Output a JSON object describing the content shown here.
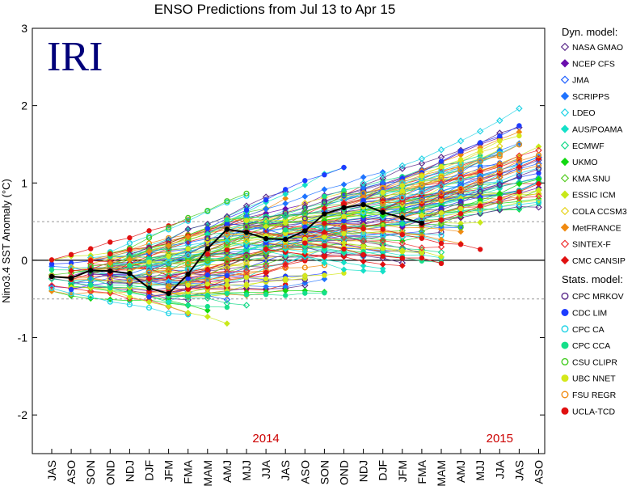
{
  "chart_data": {
    "type": "line",
    "title": "ENSO Predictions from Jul 13 to Apr 15",
    "watermark": "IRI",
    "ylabel": "Nino3.4 SST Anomaly (°C)",
    "xlabel": "",
    "ylim": [
      -2.5,
      3
    ],
    "yticks": [
      -2,
      -1,
      0,
      1,
      2,
      3
    ],
    "reference_lines": [
      0.5,
      -0.5
    ],
    "grid": false,
    "legend_position": "right",
    "categories": [
      "JAS",
      "ASO",
      "SON",
      "OND",
      "NDJ",
      "DJF",
      "JFM",
      "FMA",
      "MAM",
      "AMJ",
      "MJJ",
      "JJA",
      "JAS",
      "ASO",
      "SON",
      "OND",
      "NDJ",
      "DJF",
      "JFM",
      "FMA",
      "MAM",
      "AMJ",
      "MJJ",
      "JJA",
      "JAS",
      "ASO"
    ],
    "year_labels": [
      {
        "label": "2014",
        "category_index": 11
      },
      {
        "label": "2015",
        "category_index": 23
      }
    ],
    "observed": {
      "name": "observed",
      "color": "#000000",
      "values": [
        -0.21,
        -0.23,
        -0.13,
        -0.14,
        -0.17,
        -0.36,
        -0.43,
        -0.18,
        0.15,
        0.4,
        0.36,
        0.28,
        0.27,
        0.38,
        0.6,
        0.68,
        0.72,
        0.62,
        0.55,
        0.48
      ]
    },
    "legend": {
      "dynamical_heading": "Dyn. model:",
      "statistical_heading": "Stats. model:",
      "dynamical": [
        {
          "name": "NASA GMAO",
          "color": "#5a2a8a",
          "marker": "open-diamond"
        },
        {
          "name": "NCEP CFS",
          "color": "#6a0dad",
          "marker": "filled-diamond"
        },
        {
          "name": "JMA",
          "color": "#1e5fff",
          "marker": "open-diamond"
        },
        {
          "name": "SCRIPPS",
          "color": "#1e73ff",
          "marker": "filled-diamond"
        },
        {
          "name": "LDEO",
          "color": "#22d3e6",
          "marker": "open-diamond"
        },
        {
          "name": "AUS/POAMA",
          "color": "#15e0c8",
          "marker": "filled-diamond"
        },
        {
          "name": "ECMWF",
          "color": "#17d98a",
          "marker": "open-diamond"
        },
        {
          "name": "UKMO",
          "color": "#12d812",
          "marker": "filled-diamond"
        },
        {
          "name": "KMA SNU",
          "color": "#55cc22",
          "marker": "open-diamond"
        },
        {
          "name": "ESSIC ICM",
          "color": "#c8e81a",
          "marker": "filled-diamond"
        },
        {
          "name": "COLA CCSM3",
          "color": "#e6d21a",
          "marker": "open-diamond"
        },
        {
          "name": "MetFRANCE",
          "color": "#f08a10",
          "marker": "filled-diamond"
        },
        {
          "name": "SINTEX-F",
          "color": "#ee3030",
          "marker": "open-diamond"
        },
        {
          "name": "CMC CANSIP",
          "color": "#e01010",
          "marker": "filled-diamond"
        }
      ],
      "statistical": [
        {
          "name": "CPC MRKOV",
          "color": "#5a2a8a",
          "marker": "open-circle"
        },
        {
          "name": "CDC LIM",
          "color": "#1e3cff",
          "marker": "filled-circle"
        },
        {
          "name": "CPC CA",
          "color": "#22d3e6",
          "marker": "open-circle"
        },
        {
          "name": "CPC CCA",
          "color": "#15e08a",
          "marker": "filled-circle"
        },
        {
          "name": "CSU CLIPR",
          "color": "#44cc22",
          "marker": "open-circle"
        },
        {
          "name": "UBC NNET",
          "color": "#d4e81a",
          "marker": "filled-circle"
        },
        {
          "name": "FSU REGR",
          "color": "#f08a10",
          "marker": "open-circle"
        },
        {
          "name": "UCLA-TCD",
          "color": "#e01010",
          "marker": "filled-circle"
        }
      ]
    }
  }
}
